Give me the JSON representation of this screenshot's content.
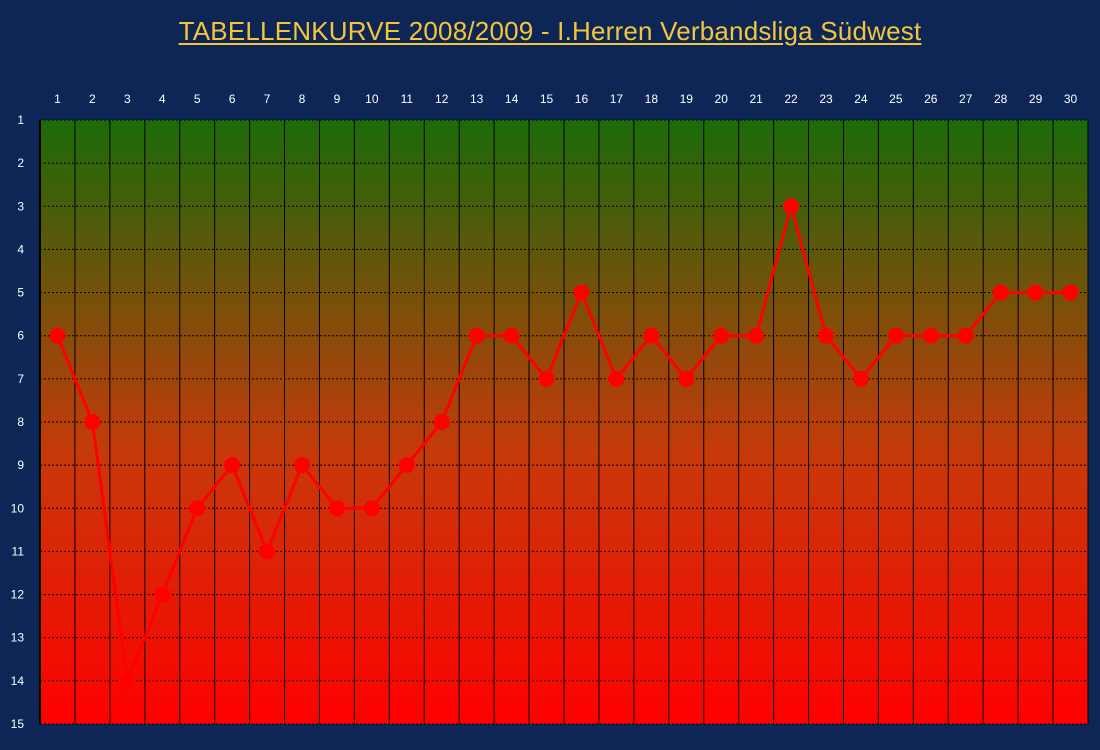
{
  "chart_data": {
    "type": "line",
    "title": "TABELLENKURVE 2008/2009 - I.Herren Verbandsliga Südwest",
    "xlabel": "",
    "ylabel": "",
    "x": [
      1,
      2,
      3,
      4,
      5,
      6,
      7,
      8,
      9,
      10,
      11,
      12,
      13,
      14,
      15,
      16,
      17,
      18,
      19,
      20,
      21,
      22,
      23,
      24,
      25,
      26,
      27,
      28,
      29,
      30
    ],
    "y_ticks": [
      1,
      2,
      3,
      4,
      5,
      6,
      7,
      8,
      9,
      10,
      11,
      12,
      13,
      14,
      15
    ],
    "ylim": [
      1,
      15
    ],
    "y_inverted": true,
    "x_axis_position": "top",
    "grid": true,
    "series": [
      {
        "values": [
          6,
          8,
          14,
          12,
          10,
          9,
          11,
          9,
          10,
          10,
          9,
          8,
          6,
          6,
          7,
          5,
          7,
          6,
          7,
          6,
          6,
          3,
          6,
          7,
          6,
          6,
          6,
          5,
          5,
          5
        ]
      }
    ],
    "colors": {
      "page_background": "#0d2656",
      "title": "#f3c53a",
      "line": "#ff0000",
      "gradient_top": "#1a6b0a",
      "gradient_bottom": "#ff0000"
    }
  }
}
